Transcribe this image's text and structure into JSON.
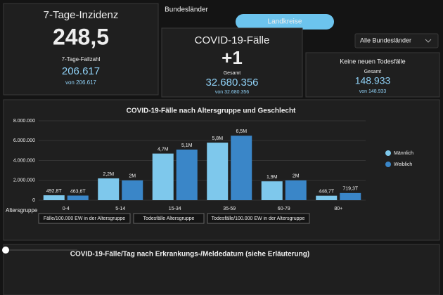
{
  "tabs": {
    "left": "Bundesländer",
    "active": "Landkreise"
  },
  "dropdown": "Alle Bundesländer",
  "cards": [
    {
      "title": "7-Tage-Inzidenz",
      "main": "248,5",
      "sub_label": "7-Tage-Fallzahl",
      "sub_value": "206.617",
      "sub_of": "von 206.617"
    },
    {
      "title": "COVID-19-Fälle",
      "main": "+1",
      "sub_label": "Gesamt",
      "sub_value": "32.680.356",
      "sub_of": "von 32.680.356"
    },
    {
      "title": "Keine neuen Todesfälle",
      "sub_label": "Gesamt",
      "sub_value": "148.933",
      "sub_of": "von 148.933"
    }
  ],
  "chart_data": {
    "type": "bar",
    "title": "COVID-19-Fälle nach Altersgruppe und Geschlecht",
    "x_label": "Altersgruppe",
    "categories": [
      "0-4",
      "5-14",
      "15-34",
      "35-59",
      "60-79",
      "80+"
    ],
    "series": [
      {
        "name": "Männlich",
        "color": "#7ec8ec",
        "values": [
          492800,
          2200000,
          4700000,
          5800000,
          1900000,
          448700
        ],
        "value_labels": [
          "492,8T",
          "2,2M",
          "4,7M",
          "5,8M",
          "1,9M",
          "448,7T"
        ]
      },
      {
        "name": "Weiblich",
        "color": "#3a86c8",
        "values": [
          463600,
          2000000,
          5100000,
          6500000,
          2000000,
          719300
        ],
        "value_labels": [
          "463,6T",
          "2M",
          "5,1M",
          "6,5M",
          "2M",
          "719,3T"
        ]
      }
    ],
    "ylim": [
      0,
      8000000
    ],
    "yticks": [
      0,
      {
        "value": 2000000,
        "label": "2.000.000"
      },
      {
        "value": 4000000,
        "label": "4.000.000"
      },
      {
        "value": 6000000,
        "label": "6.000.000"
      },
      {
        "value": 8000000,
        "label": "8.000.000"
      }
    ],
    "grid": true,
    "legend": "right"
  },
  "buttons": [
    "Fälle/100.000 EW in der Altersgruppe",
    "Todesfälle Altersgruppe",
    "Todesfälle/100.000 EW in der Altersgruppe"
  ],
  "bottom_title": "COVID-19-Fälle/Tag nach Erkrankungs-/Meldedatum (siehe Erläuterung)"
}
